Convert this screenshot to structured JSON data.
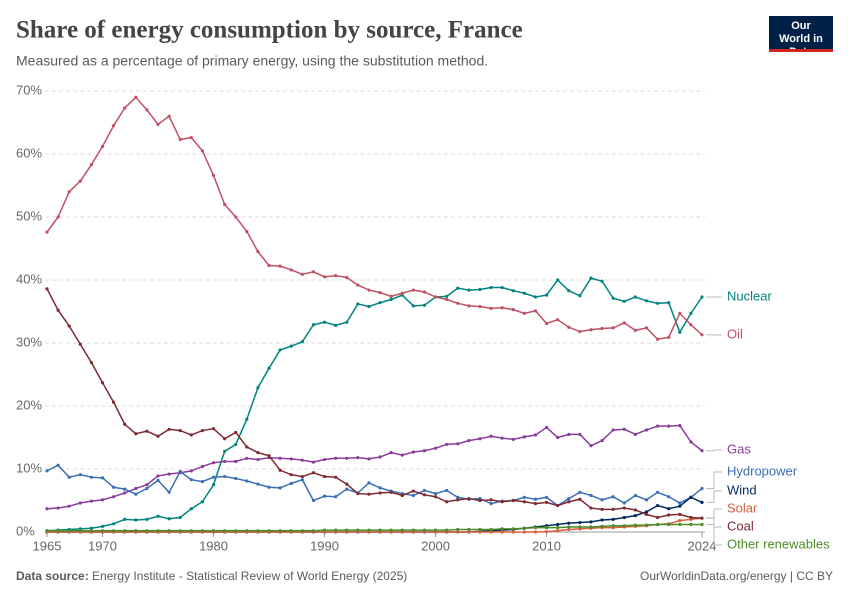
{
  "chart_data": {
    "type": "line",
    "title": "Share of energy consumption by source, France",
    "subtitle": "Measured as a percentage of primary energy, using the substitution method.",
    "logo": "Our World in Data",
    "source_label": "Data source:",
    "source": "Energy Institute - Statistical Review of World Energy (2025)",
    "footer_right": "OurWorldinData.org/energy | CC BY",
    "x": [
      1965,
      1966,
      1967,
      1968,
      1969,
      1970,
      1971,
      1972,
      1973,
      1974,
      1975,
      1976,
      1977,
      1978,
      1979,
      1980,
      1981,
      1982,
      1983,
      1984,
      1985,
      1986,
      1987,
      1988,
      1989,
      1990,
      1991,
      1992,
      1993,
      1994,
      1995,
      1996,
      1997,
      1998,
      1999,
      2000,
      2001,
      2002,
      2003,
      2004,
      2005,
      2006,
      2007,
      2008,
      2009,
      2010,
      2011,
      2012,
      2013,
      2014,
      2015,
      2016,
      2017,
      2018,
      2019,
      2020,
      2021,
      2022,
      2023,
      2024
    ],
    "xlim": [
      1965,
      2024
    ],
    "xticks": [
      1965,
      1970,
      1980,
      1990,
      2000,
      2010,
      2024
    ],
    "ylim": [
      0,
      70
    ],
    "yticks": [
      {
        "value": 0,
        "label": "0%"
      },
      {
        "value": 10,
        "label": "10%"
      },
      {
        "value": 20,
        "label": "20%"
      },
      {
        "value": 30,
        "label": "30%"
      },
      {
        "value": 40,
        "label": "40%"
      },
      {
        "value": 50,
        "label": "50%"
      },
      {
        "value": 60,
        "label": "60%"
      },
      {
        "value": 70,
        "label": "70%"
      }
    ],
    "grid": true,
    "series": [
      {
        "name": "Nuclear",
        "color": "#00847e",
        "values": [
          0.2,
          0.3,
          0.4,
          0.5,
          0.6,
          0.9,
          1.3,
          2,
          1.9,
          2,
          2.5,
          2.1,
          2.3,
          3.7,
          4.8,
          7.5,
          12.8,
          13.9,
          17.9,
          22.9,
          26,
          28.9,
          29.5,
          30.2,
          32.9,
          33.3,
          32.8,
          33.3,
          36.2,
          35.8,
          36.4,
          36.9,
          37.6,
          35.9,
          36,
          37.3,
          37.4,
          38.7,
          38.4,
          38.5,
          38.8,
          38.8,
          38.3,
          37.9,
          37.3,
          37.6,
          40,
          38.3,
          37.5,
          40.3,
          39.8,
          37.1,
          36.6,
          37.3,
          36.7,
          36.3,
          36.4,
          31.7,
          34.7,
          37.3
        ]
      },
      {
        "name": "Oil",
        "color": "#c15065",
        "values": [
          47.6,
          50,
          54,
          55.7,
          58.3,
          61.2,
          64.5,
          67.3,
          69,
          67,
          64.7,
          66,
          62.3,
          62.6,
          60.5,
          56.6,
          52,
          50,
          47.7,
          44.5,
          42.3,
          42.2,
          41.6,
          40.9,
          41.3,
          40.5,
          40.7,
          40.4,
          39.2,
          38.4,
          38,
          37.4,
          37.9,
          38.4,
          38.1,
          37.3,
          36.9,
          36.3,
          35.9,
          35.8,
          35.5,
          35.6,
          35.3,
          34.7,
          35.1,
          33.1,
          33.7,
          32.5,
          31.8,
          32.1,
          32.3,
          32.4,
          33.2,
          32,
          32.4,
          30.6,
          30.9,
          34.7,
          32.9,
          31.3
        ]
      },
      {
        "name": "Gas",
        "color": "#883c9c",
        "values": [
          3.7,
          3.8,
          4.1,
          4.6,
          4.9,
          5.1,
          5.6,
          6.2,
          6.9,
          7.5,
          8.9,
          9.2,
          9.4,
          9.7,
          10.4,
          11,
          11.2,
          11.2,
          11.7,
          11.5,
          11.8,
          11.7,
          11.6,
          11.4,
          11.1,
          11.5,
          11.7,
          11.7,
          11.8,
          11.6,
          11.9,
          12.6,
          12.2,
          12.7,
          12.9,
          13.3,
          13.9,
          14,
          14.5,
          14.8,
          15.2,
          14.9,
          14.7,
          15.1,
          15.4,
          16.6,
          15,
          15.5,
          15.5,
          13.7,
          14.5,
          16.2,
          16.3,
          15.5,
          16.2,
          16.8,
          16.8,
          16.9,
          14.3,
          12.9
        ]
      },
      {
        "name": "Hydropower",
        "color": "#3a6fb5",
        "values": [
          9.7,
          10.6,
          8.7,
          9.1,
          8.7,
          8.6,
          7.1,
          6.8,
          6,
          6.9,
          8.2,
          6.3,
          9.6,
          8.3,
          8,
          8.7,
          8.8,
          8.5,
          8.1,
          7.6,
          7.1,
          7,
          7.7,
          8.3,
          5,
          5.7,
          5.6,
          6.8,
          6.2,
          7.8,
          7,
          6.5,
          6.1,
          5.8,
          6.6,
          6.1,
          6.6,
          5.5,
          5.2,
          5.3,
          4.5,
          4.9,
          5,
          5.5,
          5.2,
          5.5,
          4.2,
          5.3,
          6.3,
          5.8,
          5.1,
          5.6,
          4.6,
          5.8,
          5.1,
          6.3,
          5.6,
          4.6,
          5.5,
          6.9
        ]
      },
      {
        "name": "Wind",
        "color": "#00295b",
        "values": [
          0,
          0,
          0,
          0,
          0,
          0,
          0,
          0,
          0,
          0,
          0,
          0,
          0,
          0,
          0,
          0,
          0,
          0,
          0,
          0,
          0,
          0,
          0,
          0,
          0,
          0,
          0,
          0,
          0,
          0,
          0,
          0,
          0,
          0,
          0,
          0,
          0,
          0,
          0,
          0.1,
          0.2,
          0.3,
          0.4,
          0.6,
          0.8,
          1,
          1.2,
          1.4,
          1.5,
          1.6,
          1.9,
          2,
          2.3,
          2.6,
          3.2,
          4.2,
          3.7,
          4.1,
          5.5,
          4.7
        ]
      },
      {
        "name": "Solar",
        "color": "#d8603f",
        "values": [
          0,
          0,
          0,
          0,
          0,
          0,
          0,
          0,
          0,
          0,
          0,
          0,
          0,
          0,
          0,
          0,
          0,
          0,
          0,
          0,
          0,
          0,
          0,
          0,
          0,
          0,
          0,
          0,
          0,
          0,
          0,
          0,
          0,
          0,
          0,
          0,
          0,
          0,
          0,
          0,
          0,
          0,
          0,
          0,
          0,
          0.05,
          0.2,
          0.4,
          0.5,
          0.6,
          0.7,
          0.7,
          0.8,
          0.9,
          1,
          1.2,
          1.3,
          1.8,
          2,
          2.2
        ]
      },
      {
        "name": "Coal",
        "color": "#7d2a33",
        "values": [
          38.6,
          35.2,
          32.7,
          29.8,
          26.9,
          23.7,
          20.6,
          17.1,
          15.6,
          16,
          15.2,
          16.3,
          16.1,
          15.4,
          16.1,
          16.4,
          14.8,
          15.8,
          13.5,
          12.6,
          12.1,
          9.8,
          9.1,
          8.8,
          9.4,
          8.8,
          8.7,
          7.6,
          6.1,
          6,
          6.2,
          6.3,
          5.8,
          6.5,
          5.9,
          5.6,
          4.8,
          5.1,
          5.3,
          5,
          5.1,
          4.8,
          5,
          4.8,
          4.5,
          4.7,
          4.2,
          4.8,
          5.2,
          3.8,
          3.6,
          3.6,
          3.8,
          3.5,
          2.8,
          2.3,
          2.7,
          2.8,
          2.3,
          2.2
        ]
      },
      {
        "name": "Other renewables",
        "color": "#4c8c2b",
        "values": [
          0.2,
          0.2,
          0.2,
          0.2,
          0.2,
          0.2,
          0.2,
          0.2,
          0.2,
          0.2,
          0.2,
          0.2,
          0.2,
          0.2,
          0.2,
          0.2,
          0.2,
          0.2,
          0.2,
          0.2,
          0.2,
          0.2,
          0.2,
          0.2,
          0.2,
          0.3,
          0.3,
          0.3,
          0.3,
          0.3,
          0.3,
          0.3,
          0.3,
          0.3,
          0.3,
          0.3,
          0.3,
          0.4,
          0.4,
          0.4,
          0.4,
          0.5,
          0.5,
          0.6,
          0.7,
          0.7,
          0.7,
          0.8,
          0.8,
          0.8,
          0.9,
          1,
          1,
          1.1,
          1.1,
          1.2,
          1.2,
          1.2,
          1.2,
          1.2
        ]
      }
    ]
  }
}
